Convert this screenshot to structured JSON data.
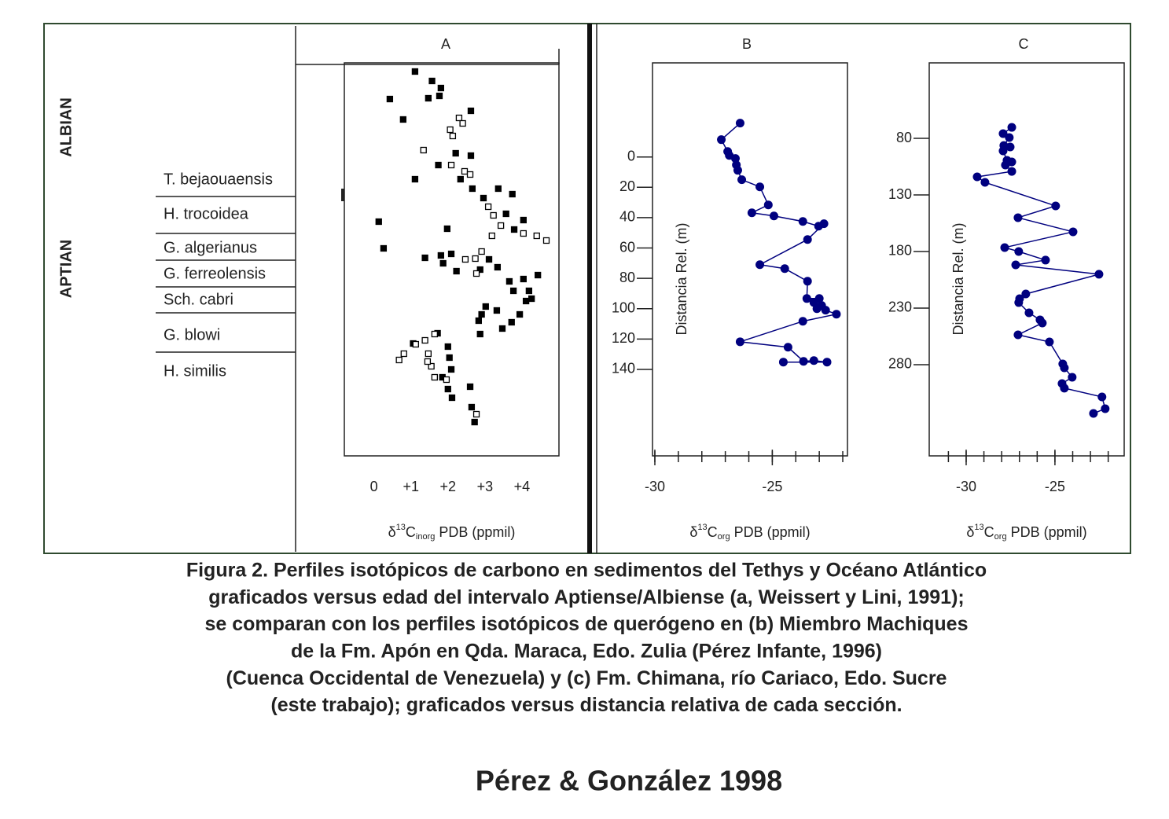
{
  "stratigraphy": {
    "stages": [
      "ALBIAN",
      "APTIAN"
    ],
    "zones": [
      "T. bejaouaensis",
      "H. trocoidea",
      "G. algerianus",
      "G. ferreolensis",
      "Sch. cabri",
      "G. blowi",
      "H. similis"
    ]
  },
  "chart_data": [
    {
      "type": "scatter",
      "title": "A",
      "x_label": {
        "prefix": "δ",
        "sup": "13",
        "base": "C",
        "sub": "inorg",
        "suffix": " PDB (ppmil)"
      },
      "xlim": [
        -0.8,
        5.0
      ],
      "xticks": [
        0,
        {
          "value": 1,
          "label": "+1"
        },
        {
          "value": 2,
          "label": "+2"
        },
        {
          "value": 3,
          "label": "+3"
        },
        {
          "value": 4,
          "label": "+4"
        }
      ],
      "ylim": [
        0,
        100
      ],
      "series": [
        {
          "marker": "filled",
          "color": "#000000",
          "x": [
            1.11,
            1.57,
            1.81,
            1.47,
            1.77,
            0.43,
            0.79,
            2.62,
            2.21,
            2.62,
            1.74,
            1.11,
            2.34,
            2.66,
            2.96,
            3.74,
            3.36,
            3.57,
            3.79,
            4.04,
            0.13,
            1.98,
            0.26,
            1.38,
            1.81,
            2.09,
            1.87,
            2.23,
            3.11,
            3.34,
            3.66,
            4.04,
            4.43,
            2.87,
            3.77,
            4.19,
            4.11,
            4.26,
            3.02,
            2.91,
            2.83,
            3.32,
            3.94,
            3.72,
            3.47,
            2.87,
            1.72,
            2.0,
            2.04,
            2.09,
            1.85,
            2.0,
            2.11,
            2.6,
            2.64,
            2.72,
            1.06
          ],
          "values": [
            97.8,
            95.4,
            93.6,
            91.0,
            91.6,
            90.8,
            85.6,
            87.8,
            77.0,
            76.4,
            74.0,
            70.4,
            70.4,
            68.0,
            65.6,
            66.6,
            68.0,
            61.6,
            57.6,
            60.0,
            59.6,
            57.8,
            52.8,
            50.4,
            51.0,
            51.4,
            49.0,
            47.0,
            50.0,
            48.0,
            44.4,
            45.0,
            46.0,
            47.4,
            42.0,
            42.0,
            39.4,
            40.0,
            38.0,
            36.0,
            34.4,
            37.0,
            36.0,
            34.0,
            32.4,
            31.0,
            31.2,
            27.8,
            25.0,
            22.0,
            20.0,
            17.0,
            14.8,
            17.6,
            12.4,
            8.6,
            28.6
          ]
        },
        {
          "marker": "open",
          "color": "#000000",
          "x": [
            2.3,
            2.4,
            2.06,
            2.09,
            2.45,
            2.13,
            1.34,
            2.6,
            3.09,
            3.23,
            3.43,
            4.04,
            4.4,
            4.66,
            2.74,
            2.77,
            2.47,
            0.81,
            0.68,
            1.13,
            1.38,
            1.64,
            1.47,
            1.55,
            1.64,
            1.45,
            1.96,
            2.77,
            2.91,
            3.19
          ],
          "values": [
            86.0,
            84.6,
            83.0,
            74.0,
            72.4,
            81.4,
            77.8,
            71.6,
            63.4,
            61.2,
            58.6,
            56.6,
            56.0,
            54.8,
            50.2,
            46.4,
            50.0,
            26.0,
            24.4,
            28.4,
            29.4,
            31.0,
            26.0,
            22.8,
            20.0,
            24.0,
            19.4,
            10.6,
            52.0,
            56.0
          ]
        }
      ]
    },
    {
      "type": "line",
      "title": "B",
      "y_label": "Distancia Rel. (m)",
      "x_label": {
        "prefix": "δ",
        "sup": "13",
        "base": "C",
        "sub": "org",
        "suffix": " PDB (ppmil)"
      },
      "xlim": [
        -30.1,
        -21.8
      ],
      "xticks": [
        -30,
        -25
      ],
      "xminorticks": [
        -30,
        -29,
        -28,
        -27,
        -26,
        -25,
        -24,
        -23,
        -22
      ],
      "ylim": [
        -62,
        197
      ],
      "y_inverted": true,
      "yticks": [
        0,
        20,
        40,
        60,
        80,
        100,
        120,
        140
      ],
      "series": [
        {
          "color": "#00007f",
          "x": [
            -26.37,
            -27.17,
            -26.9,
            -26.83,
            -26.57,
            -26.53,
            -26.47,
            -26.3,
            -25.53,
            -25.17,
            -25.87,
            -24.93,
            -23.7,
            -23.03,
            -22.8,
            -23.5,
            -25.53,
            -24.47,
            -23.5,
            -23.53,
            -23.0,
            -23.23,
            -22.9,
            -23.1,
            -22.73,
            -22.27,
            -23.7,
            -26.37,
            -24.33,
            -23.67,
            -23.23,
            -22.67,
            -24.53
          ],
          "values": [
            -22.3,
            -11.4,
            -3.6,
            -1.0,
            1.0,
            5.2,
            8.8,
            15.0,
            19.7,
            31.6,
            36.8,
            38.9,
            42.5,
            45.6,
            44.0,
            54.4,
            71.0,
            73.6,
            81.9,
            93.3,
            93.3,
            95.9,
            97.9,
            100.0,
            101.0,
            103.6,
            108.3,
            121.8,
            125.4,
            134.7,
            134.2,
            135.2,
            135.2
          ]
        }
      ]
    },
    {
      "type": "line",
      "title": "C",
      "y_label": "Distancia Rel. (m)",
      "x_label": {
        "prefix": "δ",
        "sup": "13",
        "base": "C",
        "sub": "org",
        "suffix": " PDB (ppmil)"
      },
      "xlim": [
        -32.08,
        -21.1
      ],
      "xticks": [
        -30,
        -25
      ],
      "xminorticks": [
        -31,
        -30,
        -29,
        -28,
        -27,
        -26,
        -25,
        -24,
        -23,
        -22
      ],
      "ylim": [
        13.3,
        360.6
      ],
      "y_inverted": true,
      "yticks": [
        80,
        130,
        180,
        230,
        280
      ],
      "series": [
        {
          "color": "#00007f",
          "x": [
            -27.43,
            -27.92,
            -27.57,
            -27.88,
            -27.52,
            -27.92,
            -27.7,
            -27.43,
            -27.79,
            -27.43,
            -29.38,
            -28.94,
            -24.96,
            -27.08,
            -23.98,
            -27.83,
            -27.04,
            -25.53,
            -27.21,
            -22.52,
            -26.64,
            -26.99,
            -27.04,
            -26.46,
            -25.84,
            -25.71,
            -27.08,
            -25.31,
            -24.56,
            -24.47,
            -24.03,
            -24.6,
            -24.47,
            -22.35,
            -22.17,
            -22.83
          ],
          "values": [
            70.3,
            75.8,
            79.3,
            86.3,
            87.6,
            91.1,
            99.4,
            100.8,
            103.6,
            109.2,
            114.0,
            118.9,
            139.7,
            150.1,
            162.6,
            176.5,
            180.0,
            187.6,
            191.8,
            200.1,
            217.5,
            221.7,
            225.1,
            234.2,
            240.4,
            243.2,
            253.6,
            259.9,
            279.3,
            282.8,
            291.1,
            296.7,
            300.8,
            308.5,
            318.9,
            323.1
          ]
        }
      ]
    }
  ],
  "caption": [
    "Figura 2. Perfiles isotópicos de carbono en sedimentos del Tethys y Océano Atlántico",
    "graficados versus edad del intervalo Aptiense/Albiense (a, Weissert y Lini, 1991);",
    "se comparan con los perfiles isotópicos de querógeno en (b) Miembro Machiques",
    "de la Fm. Apón en Qda. Maraca, Edo. Zulia (Pérez Infante, 1996)",
    "(Cuenca Occidental de Venezuela) y (c) Fm. Chimana, río Cariaco, Edo. Sucre",
    "(este trabajo); graficados versus distancia relativa de cada sección."
  ],
  "credit": "Pérez & González 1998"
}
